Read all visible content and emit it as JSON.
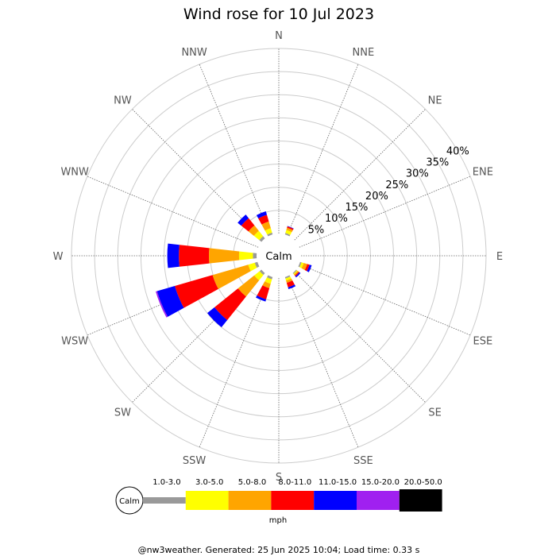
{
  "chart_data": {
    "type": "wind-rose",
    "title": "Wind rose for 10 Jul 2023",
    "directions": [
      "N",
      "NNE",
      "NE",
      "ENE",
      "E",
      "ESE",
      "SE",
      "SSE",
      "S",
      "SSW",
      "SW",
      "WSW",
      "W",
      "WNW",
      "NW",
      "NNW"
    ],
    "ring_labels": [
      "5%",
      "10%",
      "15%",
      "20%",
      "25%",
      "30%",
      "35%",
      "40%"
    ],
    "rmax_percent": 40,
    "ring_step_percent": 5,
    "calm_label": "Calm",
    "units": "mph",
    "speed_bins": [
      {
        "label": "1.0-3.0",
        "color": "#999999"
      },
      {
        "label": "3.0-5.0",
        "color": "#ffff00"
      },
      {
        "label": "5.0-8.0",
        "color": "#ffa500"
      },
      {
        "label": "8.0-11.0",
        "color": "#ff0000"
      },
      {
        "label": "11.0-15.0",
        "color": "#0000ff"
      },
      {
        "label": "15.0-20.0",
        "color": "#a020f0"
      },
      {
        "label": "20.0-50.0",
        "color": "#000000"
      }
    ],
    "frequencies_percent": {
      "N": [
        0,
        0,
        0,
        0,
        0,
        0,
        0
      ],
      "NNE": [
        0.3,
        0.7,
        0.5,
        0.3,
        0.1,
        0,
        0
      ],
      "NE": [
        0,
        0,
        0,
        0,
        0,
        0,
        0
      ],
      "ENE": [
        0,
        0,
        0,
        0,
        0,
        0,
        0
      ],
      "E": [
        0,
        0,
        0,
        0,
        0,
        0,
        0
      ],
      "ESE": [
        0.3,
        0.5,
        0.8,
        0.5,
        0.5,
        0,
        0
      ],
      "SE": [
        0.2,
        0.2,
        0.3,
        0.2,
        0.3,
        0,
        0
      ],
      "SSE": [
        0.3,
        0.5,
        0.5,
        1.0,
        0.4,
        0,
        0
      ],
      "S": [
        0,
        0,
        0,
        0,
        0,
        0,
        0
      ],
      "SSW": [
        0.5,
        1.0,
        1.0,
        2.5,
        0.5,
        0,
        0
      ],
      "SW": [
        0.5,
        1.5,
        4.5,
        6.5,
        2.0,
        0,
        0
      ],
      "WSW": [
        0.6,
        1.5,
        8.0,
        8.5,
        4.0,
        0.3,
        0
      ],
      "W": [
        0.8,
        3.0,
        6.5,
        6.5,
        2.5,
        0,
        0
      ],
      "WNW": [
        0,
        0,
        0,
        0,
        0,
        0,
        0
      ],
      "NW": [
        0.6,
        1.5,
        1.5,
        2.0,
        1.0,
        0,
        0
      ],
      "NNW": [
        0.4,
        1.0,
        1.5,
        1.5,
        0.8,
        0,
        0
      ]
    }
  },
  "footer": "@nw3weather. Generated: 25 Jun 2025 10:04; Load time: 0.33 s"
}
